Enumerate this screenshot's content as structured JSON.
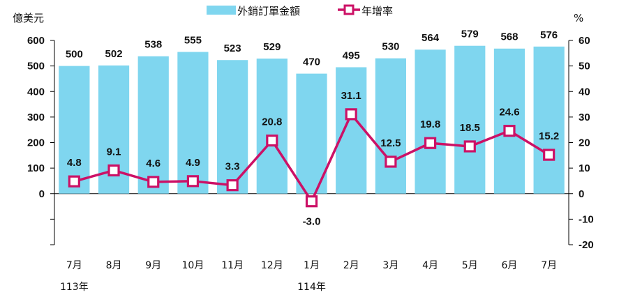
{
  "chart_data": {
    "type": "bar+line",
    "categories": [
      "7月",
      "8月",
      "9月",
      "10月",
      "11月",
      "12月",
      "1月",
      "2月",
      "3月",
      "4月",
      "5月",
      "6月",
      "7月"
    ],
    "year_labels": [
      {
        "index": 0,
        "text": "113年"
      },
      {
        "index": 6,
        "text": "114年"
      }
    ],
    "series": [
      {
        "name": "外銷訂單金額",
        "type": "bar",
        "axis": "left",
        "color": "#7fd6ef",
        "values": [
          500,
          502,
          538,
          555,
          523,
          529,
          470,
          495,
          530,
          564,
          579,
          568,
          576
        ]
      },
      {
        "name": "年增率",
        "type": "line",
        "axis": "right",
        "color": "#cc1166",
        "values": [
          4.8,
          9.1,
          4.6,
          4.9,
          3.3,
          20.8,
          -3.0,
          31.1,
          12.5,
          19.8,
          18.5,
          24.6,
          15.2
        ]
      }
    ],
    "left_axis": {
      "unit_label": "億美元",
      "range": [
        -200,
        600
      ],
      "ticks": [
        0,
        100,
        200,
        300,
        400,
        500,
        600
      ],
      "minor_ticks": [
        -100,
        -200
      ]
    },
    "right_axis": {
      "unit_label": "%",
      "range": [
        -20,
        60
      ],
      "ticks": [
        -20,
        -10,
        0,
        10,
        20,
        30,
        40,
        50,
        60
      ]
    },
    "legend_position": "top-center",
    "grid": false
  }
}
